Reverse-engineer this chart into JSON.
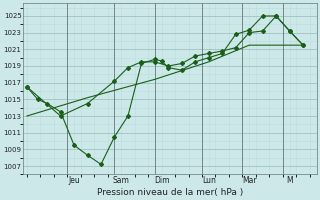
{
  "xlabel": "Pression niveau de la mer( hPa )",
  "bg_color": "#cce8e8",
  "grid_major_color": "#99bbbb",
  "grid_minor_color": "#bbdddd",
  "line_color": "#1a5e1a",
  "ylim": [
    1006.0,
    1026.5
  ],
  "yticks": [
    1007,
    1009,
    1011,
    1013,
    1015,
    1017,
    1019,
    1021,
    1023,
    1025
  ],
  "xlim": [
    -0.3,
    21.5
  ],
  "x_tick_labels": [
    "Jeu",
    "Sam",
    "Dim",
    "Lun",
    "Mar",
    "M"
  ],
  "x_tick_positions": [
    3.5,
    7.0,
    10.0,
    13.5,
    16.5,
    19.5
  ],
  "x_separator_positions": [
    3.0,
    6.5,
    9.5,
    13.0,
    16.0,
    19.0
  ],
  "line1_x": [
    0,
    0.8,
    1.5,
    2.5,
    3.5,
    4.5,
    5.5,
    6.5,
    7.5,
    8.5,
    9.5,
    10.0,
    10.5,
    11.5,
    12.5,
    13.5,
    14.5,
    15.5,
    16.5,
    17.5,
    18.5,
    19.5,
    20.5
  ],
  "line1_y": [
    1016.5,
    1015.0,
    1014.5,
    1013.5,
    1009.5,
    1008.3,
    1007.2,
    1010.5,
    1013.0,
    1019.3,
    1019.8,
    1019.6,
    1018.8,
    1018.5,
    1019.5,
    1020.0,
    1020.5,
    1022.8,
    1023.3,
    1025.0,
    1025.0,
    1023.2,
    1021.5
  ],
  "line2_x": [
    0,
    2.5,
    4.5,
    6.5,
    7.5,
    8.5,
    9.5,
    10.5,
    11.5,
    12.5,
    13.5,
    14.5,
    15.5,
    16.5,
    17.5,
    18.5,
    19.5,
    20.5
  ],
  "line2_y": [
    1016.5,
    1013.0,
    1014.5,
    1017.2,
    1018.8,
    1019.5,
    1019.5,
    1019.0,
    1019.3,
    1020.2,
    1020.5,
    1020.8,
    1021.2,
    1023.0,
    1023.2,
    1025.0,
    1023.2,
    1021.5
  ],
  "line3_x": [
    0,
    4.5,
    9.5,
    13.5,
    16.5,
    20.5
  ],
  "line3_y": [
    1013.0,
    1015.2,
    1017.4,
    1019.5,
    1021.5,
    1021.5
  ]
}
